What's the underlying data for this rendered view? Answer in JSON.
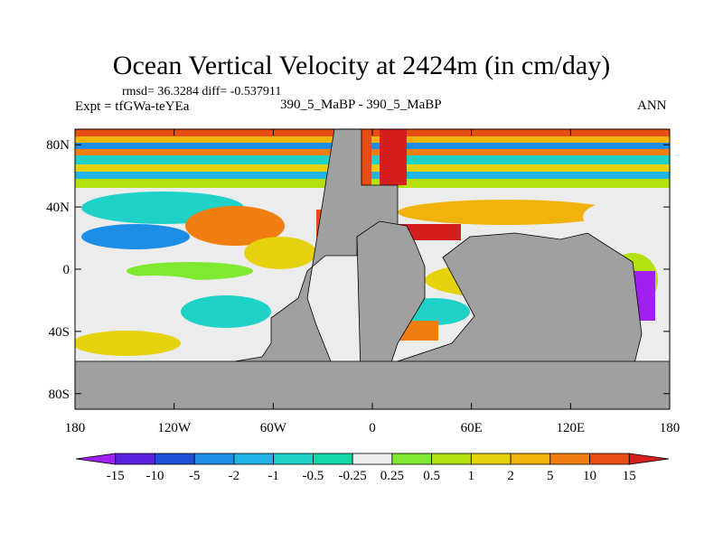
{
  "chart_data": {
    "type": "heatmap",
    "title": "Ocean Vertical Velocity at 2424m (in cm/day)",
    "stats_text": "rmsd= 36.3284 diff= -0.537911",
    "left_subtitle": "Expt = tfGWa-teYEa",
    "center_subtitle": "390_5_MaBP - 390_5_MaBP",
    "right_subtitle": "ANN",
    "x_ticks": [
      {
        "value": -180,
        "label": "180"
      },
      {
        "value": -120,
        "label": "120W"
      },
      {
        "value": -60,
        "label": "60W"
      },
      {
        "value": 0,
        "label": "0"
      },
      {
        "value": 60,
        "label": "60E"
      },
      {
        "value": 120,
        "label": "120E"
      },
      {
        "value": 180,
        "label": "180"
      }
    ],
    "y_ticks": [
      {
        "value": 80,
        "label": "80N"
      },
      {
        "value": 40,
        "label": "40N"
      },
      {
        "value": 0,
        "label": "0"
      },
      {
        "value": -40,
        "label": "40S"
      },
      {
        "value": -80,
        "label": "80S"
      }
    ],
    "xlim": [
      -180,
      180
    ],
    "ylim": [
      -90,
      90
    ],
    "units": "cm/day",
    "colorbar": {
      "levels": [
        "-15",
        "-10",
        "-5",
        "-2",
        "-1",
        "-0.5",
        "-0.25",
        "0.25",
        "0.5",
        "1",
        "2",
        "5",
        "10",
        "15"
      ],
      "colors": [
        "#a020f0",
        "#5a22e0",
        "#1f4fd8",
        "#1c8ee6",
        "#20b4e8",
        "#1fd2c8",
        "#16d7a8",
        "#ececec",
        "#7fe830",
        "#b4e00f",
        "#e6d20c",
        "#f2b20c",
        "#f07e10",
        "#e84e14",
        "#d51e1e"
      ],
      "under_color": "#a020f0",
      "over_color": "#d51e1e"
    },
    "land_color": "#a0a0a0"
  }
}
